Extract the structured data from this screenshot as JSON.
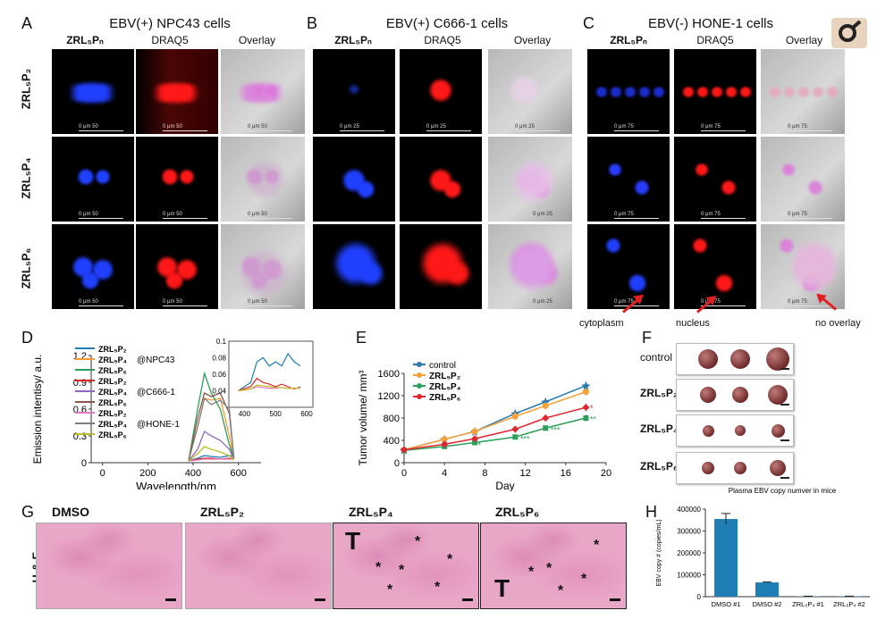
{
  "panelA": {
    "letter": "A",
    "title": "EBV(+) NPC43 cells"
  },
  "panelB": {
    "letter": "B",
    "title": "EBV(+) C666-1 cells"
  },
  "panelC": {
    "letter": "C",
    "title": "EBV(-) HONE-1 cells"
  },
  "column_headers": [
    "ZRL₅Pₙ",
    "DRAQ5",
    "Overlay"
  ],
  "row_labels": [
    "ZRL₅P₂",
    "ZRL₅P₄",
    "ZRL₅P₆"
  ],
  "scalebars": {
    "a50": "0    μm    50",
    "b25": "0   μm  25",
    "c75": "0   μm  75"
  },
  "annotations": {
    "cytoplasm": "cytoplasm",
    "nucleus": "nucleus",
    "no_overlay": "no overlay"
  },
  "panelD": {
    "letter": "D",
    "legend": [
      "ZRL₅P₂",
      "ZRL₅P₄",
      "ZRL₅P₆",
      "ZRL₅P₂",
      "ZRL₅P₄",
      "ZRL₅P₆",
      "ZRL₅P₂",
      "ZRL₅P₄",
      "ZRL₅P₆"
    ],
    "groups": [
      "@NPC43",
      "@C666-1",
      "@HONE-1"
    ]
  },
  "panelE": {
    "letter": "E"
  },
  "panelF": {
    "letter": "F",
    "rows": [
      "control",
      "ZRL₅P₂",
      "ZRL₅P₄",
      "ZRL₅P₆"
    ]
  },
  "panelG": {
    "letter": "G",
    "side_label": "H & E",
    "columns": [
      "DMSO",
      "ZRL₅P₂",
      "ZRL₅P₄",
      "ZRL₅P₆"
    ],
    "T": "T",
    "star": "*"
  },
  "panelH": {
    "letter": "H"
  },
  "chart_data": [
    {
      "type": "line",
      "xlabel": "Wavelength/nm",
      "ylabel": "Emission intentisy/ a.u.",
      "xlim": [
        -50,
        700
      ],
      "ylim": [
        0,
        1.2
      ],
      "xticks": [
        0,
        200,
        400,
        600
      ],
      "yticks": [
        0,
        0.3,
        0.6,
        0.9,
        1.2
      ],
      "series_colors": [
        "#1f7fb4",
        "#ff9933",
        "#2ca05a",
        "#d62728",
        "#9467bd",
        "#8c564b",
        "#e377c2",
        "#7f7f7f",
        "#bcbd22"
      ],
      "series": [
        {
          "name": "ZRL₅P₂ @NPC43",
          "x": [
            380,
            420,
            450,
            480,
            520,
            560,
            580
          ],
          "values": [
            0.02,
            0.05,
            0.08,
            0.07,
            0.06,
            0.08,
            0.07
          ]
        },
        {
          "name": "ZRL₅P₄ @NPC43",
          "x": [
            380,
            420,
            450,
            480,
            520,
            560,
            580
          ],
          "values": [
            0.02,
            0.4,
            0.72,
            0.7,
            0.72,
            0.3,
            0.05
          ]
        },
        {
          "name": "ZRL₅P₆ @NPC43",
          "x": [
            380,
            420,
            450,
            480,
            520,
            560,
            580
          ],
          "values": [
            0.02,
            0.6,
            1.0,
            0.78,
            0.6,
            0.2,
            0.05
          ]
        },
        {
          "name": "ZRL₅P₂ @C666-1",
          "x": [
            380,
            420,
            450,
            480,
            520,
            560,
            580
          ],
          "values": [
            0.02,
            0.04,
            0.05,
            0.05,
            0.04,
            0.05,
            0.04
          ]
        },
        {
          "name": "ZRL₅P₄ @C666-1",
          "x": [
            380,
            420,
            450,
            480,
            520,
            560,
            580
          ],
          "values": [
            0.02,
            0.15,
            0.35,
            0.3,
            0.25,
            0.15,
            0.04
          ]
        },
        {
          "name": "ZRL₅P₆ @C666-1",
          "x": [
            380,
            420,
            450,
            480,
            520,
            560,
            580
          ],
          "values": [
            0.02,
            0.5,
            0.78,
            0.74,
            0.78,
            0.55,
            0.06
          ]
        },
        {
          "name": "ZRL₅P₂ @HONE-1",
          "x": [
            380,
            420,
            450,
            480,
            520,
            560,
            580
          ],
          "values": [
            0.02,
            0.03,
            0.04,
            0.04,
            0.04,
            0.04,
            0.04
          ]
        },
        {
          "name": "ZRL₅P₄ @HONE-1",
          "x": [
            380,
            420,
            450,
            480,
            520,
            560,
            580
          ],
          "values": [
            0.02,
            0.4,
            0.72,
            0.65,
            0.7,
            0.6,
            0.05
          ]
        },
        {
          "name": "ZRL₅P₆ @HONE-1",
          "x": [
            380,
            420,
            450,
            480,
            520,
            560,
            580
          ],
          "values": [
            0.02,
            0.1,
            0.18,
            0.15,
            0.12,
            0.08,
            0.03
          ]
        }
      ],
      "inset": {
        "xlim": [
          350,
          620
        ],
        "ylim": [
          0.02,
          0.1
        ],
        "xticks": [
          400,
          500,
          600
        ],
        "yticks": [
          0.04,
          0.06,
          0.08,
          0.1
        ],
        "series": [
          {
            "color": "#1f7fb4",
            "x": [
              380,
              420,
              440,
              460,
              480,
              500,
              520,
              540,
              560,
              580
            ],
            "values": [
              0.04,
              0.05,
              0.075,
              0.08,
              0.07,
              0.075,
              0.07,
              0.085,
              0.075,
              0.07
            ]
          },
          {
            "color": "#d62728",
            "x": [
              380,
              420,
              440,
              460,
              480,
              500,
              520,
              540,
              560,
              580
            ],
            "values": [
              0.04,
              0.045,
              0.055,
              0.05,
              0.048,
              0.045,
              0.048,
              0.045,
              0.042,
              0.045
            ]
          },
          {
            "color": "#e377c2",
            "x": [
              380,
              420,
              440,
              460,
              480,
              500,
              520,
              540,
              560,
              580
            ],
            "values": [
              0.04,
              0.042,
              0.045,
              0.044,
              0.043,
              0.043,
              0.044,
              0.043,
              0.043,
              0.044
            ]
          },
          {
            "color": "#bcbd22",
            "x": [
              380,
              420,
              440,
              460,
              480,
              500,
              520,
              540,
              560,
              580
            ],
            "values": [
              0.04,
              0.042,
              0.047,
              0.046,
              0.045,
              0.044,
              0.044,
              0.043,
              0.043,
              0.043
            ]
          }
        ]
      }
    },
    {
      "type": "line",
      "xlabel": "Day",
      "ylabel": "Tumor volume/ mm³",
      "xlim": [
        0,
        20
      ],
      "ylim": [
        0,
        1600
      ],
      "xticks": [
        0,
        4,
        8,
        12,
        16,
        20
      ],
      "yticks": [
        0,
        400,
        800,
        1200,
        1600
      ],
      "x": [
        0,
        4,
        7,
        11,
        14,
        18
      ],
      "series": [
        {
          "name": "control",
          "color": "#2a7ab0",
          "marker": "star",
          "values": [
            230,
            420,
            560,
            880,
            1090,
            1380
          ],
          "err": [
            40,
            60,
            60,
            70,
            60,
            70
          ]
        },
        {
          "name": "ZRL₅P₂",
          "color": "#f7a13a",
          "marker": "circle",
          "values": [
            230,
            420,
            560,
            830,
            1020,
            1270
          ],
          "err": [
            40,
            70,
            60,
            70,
            60,
            70
          ]
        },
        {
          "name": "ZRL₅P₄",
          "color": "#2ca05a",
          "marker": "square",
          "values": [
            220,
            290,
            360,
            460,
            620,
            800
          ],
          "err": [
            30,
            40,
            40,
            40,
            40,
            60
          ]
        },
        {
          "name": "ZRL₅P₆",
          "color": "#e0262e",
          "marker": "diamond",
          "values": [
            230,
            330,
            430,
            600,
            800,
            990
          ],
          "err": [
            40,
            40,
            40,
            60,
            60,
            70
          ]
        }
      ],
      "significance": [
        "*",
        "***",
        "***",
        "**",
        "*"
      ]
    },
    {
      "type": "bar",
      "title": "Plasma EBV copy numver in mice",
      "ylabel": "EBV copy # (copies/mL)",
      "categories": [
        "DMSO #1",
        "DMSO #2",
        "ZRL₅P₄ #1",
        "ZRL₅P₄ #2"
      ],
      "values": [
        355000,
        65000,
        2000,
        2000
      ],
      "err": [
        25000,
        2000,
        500,
        500
      ],
      "ylim": [
        0,
        400000
      ],
      "yticks": [
        0,
        100000,
        200000,
        300000,
        400000
      ],
      "color": "#1f7fb4"
    }
  ]
}
